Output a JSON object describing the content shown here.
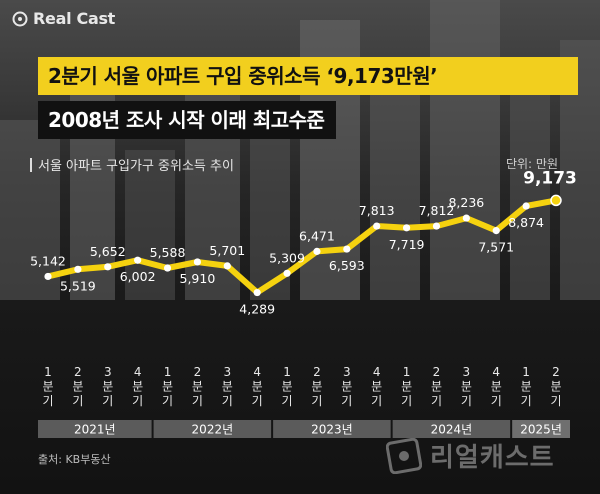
{
  "brand": {
    "name": "Real Cast"
  },
  "headline": {
    "line1": "2분기 서울 아파트 구입 중위소득 ‘9,173만원’",
    "line2": "2008년 조사 시작 이래 최고수준"
  },
  "chart_data": {
    "type": "line",
    "title": "서울 아파트 구입가구 중위소득 추이",
    "unit": "단위: 만원",
    "categories": [
      "1분기",
      "2분기",
      "3분기",
      "4분기",
      "1분기",
      "2분기",
      "3분기",
      "4분기",
      "1분기",
      "2분기",
      "3분기",
      "4분기",
      "1분기",
      "2분기",
      "3분기",
      "4분기",
      "1분기",
      "2분기"
    ],
    "category_chars": [
      [
        "1",
        "분",
        "기"
      ],
      [
        "2",
        "분",
        "기"
      ],
      [
        "3",
        "분",
        "기"
      ],
      [
        "4",
        "분",
        "기"
      ],
      [
        "1",
        "분",
        "기"
      ],
      [
        "2",
        "분",
        "기"
      ],
      [
        "3",
        "분",
        "기"
      ],
      [
        "4",
        "분",
        "기"
      ],
      [
        "1",
        "분",
        "기"
      ],
      [
        "2",
        "분",
        "기"
      ],
      [
        "3",
        "분",
        "기"
      ],
      [
        "4",
        "분",
        "기"
      ],
      [
        "1",
        "분",
        "기"
      ],
      [
        "2",
        "분",
        "기"
      ],
      [
        "3",
        "분",
        "기"
      ],
      [
        "4",
        "분",
        "기"
      ],
      [
        "1",
        "분",
        "기"
      ],
      [
        "2",
        "분",
        "기"
      ]
    ],
    "years": [
      {
        "label": "2021년",
        "quarters": 4
      },
      {
        "label": "2022년",
        "quarters": 4
      },
      {
        "label": "2023년",
        "quarters": 4
      },
      {
        "label": "2024년",
        "quarters": 4
      },
      {
        "label": "2025년",
        "quarters": 2
      }
    ],
    "values": [
      5142,
      5519,
      5652,
      6002,
      5588,
      5910,
      5701,
      4289,
      5309,
      6471,
      6593,
      7813,
      7719,
      7812,
      8236,
      7571,
      8874,
      9173
    ],
    "value_labels": [
      "5,142",
      "5,519",
      "5,652",
      "6,002",
      "5,588",
      "5,910",
      "5,701",
      "4,289",
      "5,309",
      "6,471",
      "6,593",
      "7,813",
      "7,719",
      "7,812",
      "8,236",
      "7,571",
      "8,874",
      "9,173"
    ],
    "label_positions": [
      "above",
      "below",
      "above",
      "below",
      "above",
      "below",
      "above",
      "below",
      "above",
      "above",
      "below",
      "above",
      "below",
      "above",
      "above",
      "below",
      "below",
      "above"
    ],
    "highlight_index": 17,
    "line_color": "#f5d20f",
    "ylim": [
      4000,
      9500
    ]
  },
  "source": "출처: KB부동산",
  "watermark": "리얼캐스트"
}
